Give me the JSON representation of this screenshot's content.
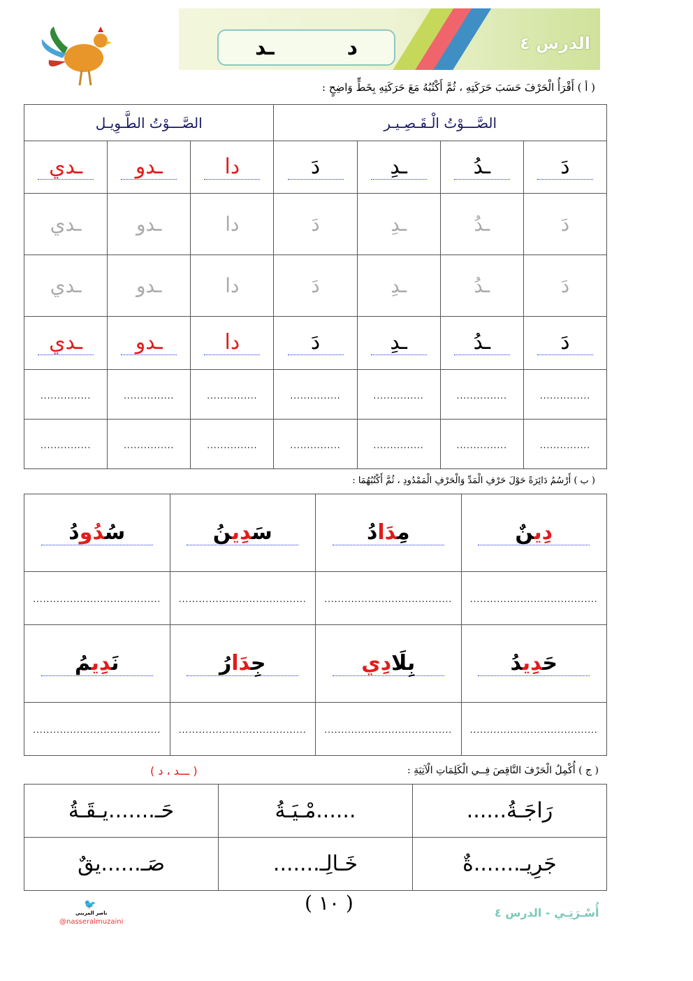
{
  "header": {
    "lesson": "الدرس ٤",
    "letters": [
      "د",
      "ـد"
    ],
    "rooster_icon": "rooster-icon",
    "stripe_colors": [
      "#c6d85a",
      "#f0656b",
      "#3f8fc4"
    ]
  },
  "section_a": {
    "instruction": "( أ ) أَقْرَأُ الْحَرْفَ حَسَبَ حَرَكَتِهِ ، ثُمَّ أَكْتُبُهُ مَعَ حَرَكَتِهِ بِخَطٍّ وَاضِحٍ :",
    "short_header": "الصَّـــوْتُ الْـقَـصِـيـر",
    "long_header": "الصَّـــوْتُ الطَّـوِيـل",
    "letters": [
      "دَ",
      "ـدُ",
      "ـدِ",
      "دَ",
      "دا",
      "ـدو",
      "ـدي"
    ],
    "dots": "..............."
  },
  "section_b": {
    "instruction": "( ب ) أَرْسُمُ دَائِرَةً حَوْلَ حَرْفِ الْمَدِّ وَالْحَرْفِ الْمَمْدُودِ ، ثُمَّ أَكْتُبُهُمَا :",
    "words": [
      [
        {
          "t": "دِي",
          "r": true
        },
        {
          "t": "نٌ",
          "r": false
        }
      ],
      [
        {
          "t": "مِ",
          "r": false
        },
        {
          "t": "دَا",
          "r": true
        },
        {
          "t": "دُ",
          "r": false
        }
      ],
      [
        {
          "t": "سَ",
          "r": false
        },
        {
          "t": "دِي",
          "r": true
        },
        {
          "t": "نُ",
          "r": false
        }
      ],
      [
        {
          "t": "سُ",
          "r": false
        },
        {
          "t": "دُو",
          "r": true
        },
        {
          "t": "دُ",
          "r": false
        }
      ],
      [
        {
          "t": "حَ",
          "r": false
        },
        {
          "t": "دِي",
          "r": true
        },
        {
          "t": "دُ",
          "r": false
        }
      ],
      [
        {
          "t": "بِلَا",
          "r": false
        },
        {
          "t": "دِي",
          "r": true
        }
      ],
      [
        {
          "t": "جِ",
          "r": false
        },
        {
          "t": "دَا",
          "r": true
        },
        {
          "t": "رُ",
          "r": false
        }
      ],
      [
        {
          "t": "نَ",
          "r": false
        },
        {
          "t": "دِي",
          "r": true
        },
        {
          "t": "مُ",
          "r": false
        }
      ]
    ],
    "dots": "......................................"
  },
  "section_c": {
    "instruction": "( ج ) أُكْمِلُ الْحَرْفَ النَّاقِصَ فِــي الْكَلِمَاتِ الْآتِيَةِ :",
    "hint": "(  ـــد   ،   د  )",
    "words": [
      "رَاجَـةُ......",
      "......مْـيَـةُ",
      "حَـ.......يـقَـةُ",
      "جَرِيـ.......ةٌ",
      "خَـالِـ.......",
      "صَـ......يقٌ"
    ]
  },
  "footer": {
    "page": "( ١٠ )",
    "handle": "@nasseralmuzaini",
    "author": "ناصر المزيني",
    "book": "أُسْـرَتِـي - الدرس ٤",
    "twitter_icon": "twitter-icon"
  }
}
